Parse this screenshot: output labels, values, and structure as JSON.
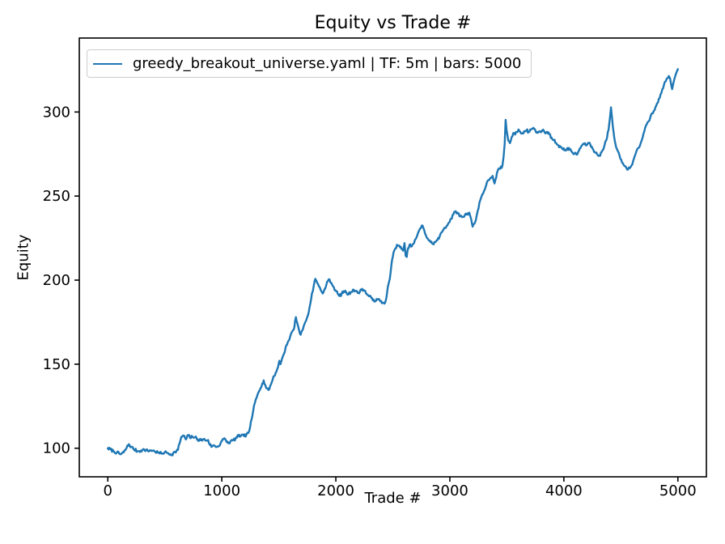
{
  "chart_data": {
    "type": "line",
    "title": "Equity vs Trade #",
    "xlabel": "Trade #",
    "ylabel": "Equity",
    "legend_position": "upper left",
    "grid": false,
    "background": "#ffffff",
    "axis_color": "#000000",
    "xlim": [
      -250,
      5250
    ],
    "ylim": [
      83,
      344
    ],
    "xticks": [
      0,
      1000,
      2000,
      3000,
      4000,
      5000
    ],
    "yticks": [
      100,
      150,
      200,
      250,
      300
    ],
    "noise_amplitude": 0.9,
    "series": [
      {
        "name": "greedy_breakout_universe.yaml | TF: 5m | bars: 5000",
        "color": "#1f77b4",
        "points": [
          [
            0,
            100
          ],
          [
            25,
            99.2
          ],
          [
            50,
            98.2
          ],
          [
            80,
            97.4
          ],
          [
            113,
            96.4
          ],
          [
            140,
            97.6
          ],
          [
            165,
            100.2
          ],
          [
            184,
            102.4
          ],
          [
            205,
            100.8
          ],
          [
            230,
            99.4
          ],
          [
            260,
            98.2
          ],
          [
            290,
            98.6
          ],
          [
            320,
            99.2
          ],
          [
            350,
            98.4
          ],
          [
            380,
            98.8
          ],
          [
            410,
            98.2
          ],
          [
            440,
            97.4
          ],
          [
            470,
            96.8
          ],
          [
            500,
            97.6
          ],
          [
            530,
            97.0
          ],
          [
            560,
            96.3
          ],
          [
            590,
            97.8
          ],
          [
            615,
            99.0
          ],
          [
            630,
            103.0
          ],
          [
            644,
            106.7
          ],
          [
            665,
            107.5
          ],
          [
            685,
            105.2
          ],
          [
            705,
            107.9
          ],
          [
            722,
            106.0
          ],
          [
            742,
            107.0
          ],
          [
            765,
            106.5
          ],
          [
            790,
            105.2
          ],
          [
            815,
            104.8
          ],
          [
            840,
            105.3
          ],
          [
            865,
            104.6
          ],
          [
            880,
            104.9
          ],
          [
            895,
            102.0
          ],
          [
            915,
            101.0
          ],
          [
            935,
            101.6
          ],
          [
            955,
            100.8
          ],
          [
            977,
            101.5
          ],
          [
            995,
            104.0
          ],
          [
            1015,
            105.5
          ],
          [
            1035,
            104.8
          ],
          [
            1055,
            103.0
          ],
          [
            1075,
            104.0
          ],
          [
            1095,
            104.6
          ],
          [
            1120,
            105.6
          ],
          [
            1145,
            107.2
          ],
          [
            1170,
            107.6
          ],
          [
            1195,
            107.2
          ],
          [
            1215,
            108.0
          ],
          [
            1232,
            109.0
          ],
          [
            1248,
            112.5
          ],
          [
            1262,
            117.5
          ],
          [
            1276,
            122.5
          ],
          [
            1290,
            127.0
          ],
          [
            1305,
            130.0
          ],
          [
            1320,
            133.0
          ],
          [
            1338,
            135.5
          ],
          [
            1355,
            138.5
          ],
          [
            1367,
            140.4
          ],
          [
            1382,
            137.5
          ],
          [
            1396,
            135.6
          ],
          [
            1409,
            134.6
          ],
          [
            1425,
            137.2
          ],
          [
            1445,
            140.5
          ],
          [
            1460,
            143.0
          ],
          [
            1478,
            145.5
          ],
          [
            1494,
            148.5
          ],
          [
            1504,
            152.0
          ],
          [
            1514,
            150.0
          ],
          [
            1529,
            153.5
          ],
          [
            1544,
            156.0
          ],
          [
            1560,
            160.0
          ],
          [
            1578,
            163.0
          ],
          [
            1598,
            166.0
          ],
          [
            1618,
            169.5
          ],
          [
            1636,
            172.0
          ],
          [
            1650,
            178.0
          ],
          [
            1662,
            174.5
          ],
          [
            1678,
            170.0
          ],
          [
            1692,
            167.5
          ],
          [
            1706,
            170.0
          ],
          [
            1726,
            174.0
          ],
          [
            1746,
            177.5
          ],
          [
            1763,
            181.0
          ],
          [
            1776,
            186.0
          ],
          [
            1790,
            192.0
          ],
          [
            1806,
            196.5
          ],
          [
            1820,
            200.8
          ],
          [
            1836,
            198.5
          ],
          [
            1852,
            196.3
          ],
          [
            1868,
            194.0
          ],
          [
            1885,
            192.0
          ],
          [
            1900,
            194.5
          ],
          [
            1916,
            197.0
          ],
          [
            1931,
            199.5
          ],
          [
            1945,
            200.4
          ],
          [
            1961,
            198.3
          ],
          [
            1977,
            196.3
          ],
          [
            1996,
            194.0
          ],
          [
            2016,
            192.0
          ],
          [
            2031,
            190.6
          ],
          [
            2051,
            191.8
          ],
          [
            2071,
            193.4
          ],
          [
            2091,
            192.6
          ],
          [
            2111,
            191.6
          ],
          [
            2131,
            192.8
          ],
          [
            2151,
            194.4
          ],
          [
            2171,
            193.6
          ],
          [
            2191,
            192.4
          ],
          [
            2211,
            193.2
          ],
          [
            2231,
            194.8
          ],
          [
            2251,
            193.8
          ],
          [
            2271,
            191.8
          ],
          [
            2291,
            190.4
          ],
          [
            2311,
            189.4
          ],
          [
            2331,
            188.4
          ],
          [
            2351,
            187.6
          ],
          [
            2371,
            188.6
          ],
          [
            2391,
            187.4
          ],
          [
            2411,
            186.6
          ],
          [
            2426,
            186.0
          ],
          [
            2438,
            188.0
          ],
          [
            2450,
            193.0
          ],
          [
            2462,
            197.5
          ],
          [
            2474,
            201.0
          ],
          [
            2487,
            209.0
          ],
          [
            2500,
            214.0
          ],
          [
            2512,
            217.5
          ],
          [
            2524,
            219.0
          ],
          [
            2536,
            221.0
          ],
          [
            2550,
            220.5
          ],
          [
            2563,
            219.5
          ],
          [
            2576,
            218.5
          ],
          [
            2590,
            217.5
          ],
          [
            2602,
            222.0
          ],
          [
            2612,
            214.5
          ],
          [
            2622,
            213.8
          ],
          [
            2634,
            219.0
          ],
          [
            2646,
            221.0
          ],
          [
            2659,
            220.0
          ],
          [
            2672,
            221.0
          ],
          [
            2686,
            222.0
          ],
          [
            2701,
            224.5
          ],
          [
            2716,
            227.0
          ],
          [
            2731,
            229.5
          ],
          [
            2746,
            231.0
          ],
          [
            2760,
            232.5
          ],
          [
            2776,
            229.5
          ],
          [
            2791,
            226.5
          ],
          [
            2811,
            224.2
          ],
          [
            2831,
            222.6
          ],
          [
            2851,
            221.6
          ],
          [
            2871,
            222.6
          ],
          [
            2891,
            223.8
          ],
          [
            2911,
            226.0
          ],
          [
            2931,
            228.6
          ],
          [
            2951,
            231.0
          ],
          [
            2971,
            232.2
          ],
          [
            2991,
            234.2
          ],
          [
            3011,
            236.6
          ],
          [
            3031,
            239.0
          ],
          [
            3051,
            241.0
          ],
          [
            3071,
            239.6
          ],
          [
            3091,
            238.0
          ],
          [
            3111,
            237.6
          ],
          [
            3131,
            238.6
          ],
          [
            3151,
            239.6
          ],
          [
            3171,
            240.2
          ],
          [
            3186,
            236.5
          ],
          [
            3200,
            231.8
          ],
          [
            3214,
            233.5
          ],
          [
            3229,
            236.0
          ],
          [
            3244,
            241.0
          ],
          [
            3259,
            246.0
          ],
          [
            3279,
            250.0
          ],
          [
            3299,
            253.0
          ],
          [
            3319,
            256.5
          ],
          [
            3339,
            259.5
          ],
          [
            3359,
            261.0
          ],
          [
            3375,
            262.0
          ],
          [
            3392,
            257.5
          ],
          [
            3406,
            261.0
          ],
          [
            3421,
            265.4
          ],
          [
            3441,
            266.2
          ],
          [
            3461,
            268.0
          ],
          [
            3471,
            273.0
          ],
          [
            3481,
            281.0
          ],
          [
            3489,
            295.3
          ],
          [
            3498,
            289.0
          ],
          [
            3512,
            283.0
          ],
          [
            3527,
            281.5
          ],
          [
            3542,
            285.0
          ],
          [
            3557,
            287.5
          ],
          [
            3572,
            286.6
          ],
          [
            3587,
            288.0
          ],
          [
            3602,
            289.6
          ],
          [
            3617,
            288.2
          ],
          [
            3632,
            287.2
          ],
          [
            3652,
            288.6
          ],
          [
            3672,
            289.2
          ],
          [
            3692,
            288.2
          ],
          [
            3712,
            289.6
          ],
          [
            3732,
            290.6
          ],
          [
            3752,
            288.6
          ],
          [
            3772,
            287.6
          ],
          [
            3792,
            288.6
          ],
          [
            3812,
            289.2
          ],
          [
            3832,
            287.8
          ],
          [
            3852,
            288.2
          ],
          [
            3872,
            286.8
          ],
          [
            3892,
            284.8
          ],
          [
            3912,
            283.2
          ],
          [
            3932,
            281.6
          ],
          [
            3952,
            280.2
          ],
          [
            3972,
            279.2
          ],
          [
            3992,
            277.8
          ],
          [
            4012,
            277.2
          ],
          [
            4032,
            278.6
          ],
          [
            4052,
            277.6
          ],
          [
            4072,
            276.2
          ],
          [
            4092,
            275.2
          ],
          [
            4112,
            274.6
          ],
          [
            4132,
            277.0
          ],
          [
            4152,
            279.6
          ],
          [
            4172,
            281.2
          ],
          [
            4192,
            280.2
          ],
          [
            4212,
            281.6
          ],
          [
            4232,
            280.6
          ],
          [
            4252,
            278.2
          ],
          [
            4272,
            276.2
          ],
          [
            4292,
            274.8
          ],
          [
            4312,
            274.2
          ],
          [
            4332,
            276.2
          ],
          [
            4352,
            279.2
          ],
          [
            4372,
            283.2
          ],
          [
            4392,
            289.5
          ],
          [
            4404,
            296.5
          ],
          [
            4413,
            302.8
          ],
          [
            4423,
            296.0
          ],
          [
            4435,
            288.5
          ],
          [
            4447,
            282.5
          ],
          [
            4459,
            279.0
          ],
          [
            4473,
            276.8
          ],
          [
            4488,
            274.2
          ],
          [
            4503,
            271.6
          ],
          [
            4518,
            269.4
          ],
          [
            4533,
            267.8
          ],
          [
            4548,
            266.8
          ],
          [
            4563,
            265.8
          ],
          [
            4578,
            266.6
          ],
          [
            4593,
            268.2
          ],
          [
            4608,
            271.0
          ],
          [
            4623,
            274.0
          ],
          [
            4638,
            277.0
          ],
          [
            4653,
            278.6
          ],
          [
            4668,
            280.2
          ],
          [
            4683,
            283.2
          ],
          [
            4698,
            287.0
          ],
          [
            4713,
            290.6
          ],
          [
            4728,
            292.8
          ],
          [
            4743,
            294.5
          ],
          [
            4758,
            296.8
          ],
          [
            4773,
            299.2
          ],
          [
            4788,
            300.6
          ],
          [
            4803,
            302.8
          ],
          [
            4818,
            305.2
          ],
          [
            4833,
            307.8
          ],
          [
            4848,
            310.5
          ],
          [
            4863,
            313.5
          ],
          [
            4878,
            316.2
          ],
          [
            4893,
            318.2
          ],
          [
            4908,
            320.2
          ],
          [
            4920,
            321.4
          ],
          [
            4932,
            319.8
          ],
          [
            4942,
            315.8
          ],
          [
            4950,
            313.6
          ],
          [
            4960,
            317.0
          ],
          [
            4970,
            319.8
          ],
          [
            4980,
            322.2
          ],
          [
            4990,
            324.0
          ],
          [
            5000,
            325.5
          ]
        ]
      }
    ]
  }
}
